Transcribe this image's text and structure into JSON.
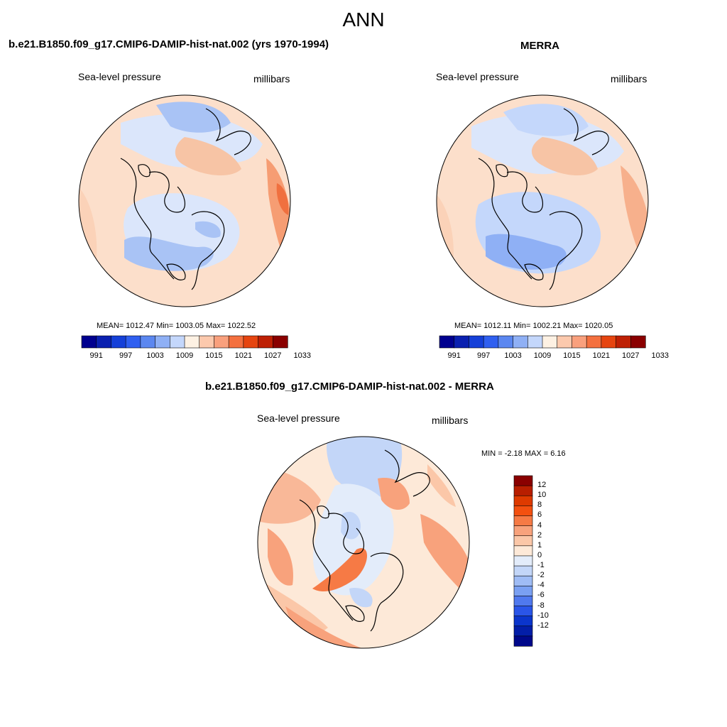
{
  "figure": {
    "title": "ANN",
    "panels": [
      {
        "title": "b.e21.B1850.f09_g17.CMIP6-DAMIP-hist-nat.002 (yrs 1970-1994)",
        "left_label": "Sea-level pressure",
        "right_label": "millibars",
        "stats": "MEAN= 1012.47  Min= 1003.05  Max= 1022.52"
      },
      {
        "title": "MERRA",
        "left_label": "Sea-level pressure",
        "right_label": "millibars",
        "stats": "MEAN= 1012.11  Min= 1002.21  Max= 1020.05"
      },
      {
        "title": "b.e21.B1850.f09_g17.CMIP6-DAMIP-hist-nat.002 - MERRA",
        "left_label": "Sea-level pressure",
        "right_label": "millibars",
        "stats": "MIN =  -2.18 MAX =   6.16"
      }
    ],
    "colorbar_abs": {
      "colors": [
        "#00008f",
        "#0a20b0",
        "#1540d8",
        "#2f5ff0",
        "#5b87f0",
        "#8fb0f5",
        "#c4d7fb",
        "#fdf1e3",
        "#fcc9ad",
        "#f9a07d",
        "#f4703f",
        "#e64510",
        "#be2004",
        "#8a0000"
      ],
      "labels": [
        "991",
        "997",
        "1003",
        "1009",
        "1015",
        "1021",
        "1027",
        "1033"
      ]
    },
    "colorbar_diff": {
      "colors": [
        "#8a0000",
        "#b81e00",
        "#de3a00",
        "#f35010",
        "#f67a45",
        "#f8a27c",
        "#fbc7a8",
        "#fde9d8",
        "#e3ecfa",
        "#c3d6f8",
        "#9fbcf5",
        "#7aa0f2",
        "#5079ee",
        "#2a55e8",
        "#0b35cc",
        "#031ea8",
        "#00088a"
      ],
      "labels": [
        "12",
        "10",
        "8",
        "6",
        "4",
        "2",
        "1",
        "0",
        "-1",
        "-2",
        "-4",
        "-6",
        "-8",
        "-10",
        "-12"
      ]
    }
  }
}
